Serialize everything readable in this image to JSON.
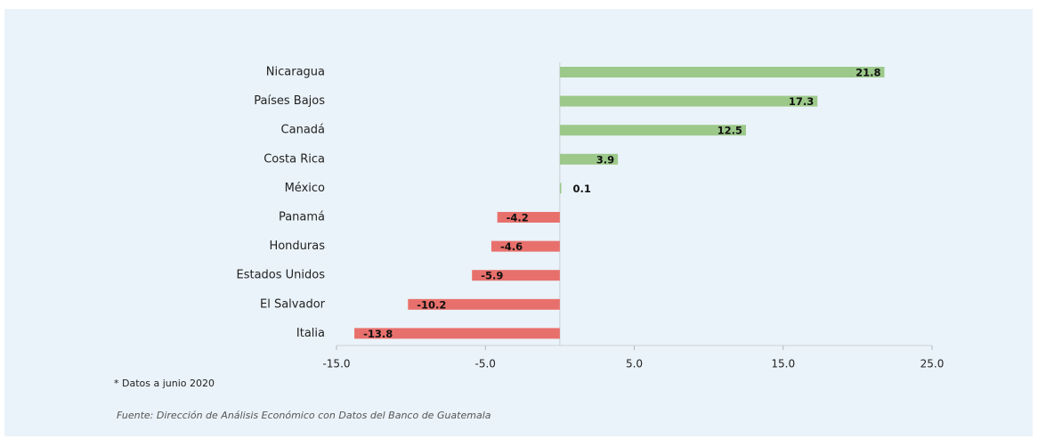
{
  "chart_data": {
    "type": "barh",
    "categories": [
      "Nicaragua",
      "Países Bajos",
      "Canadá",
      "Costa Rica",
      "México",
      "Panamá",
      "Honduras",
      "Estados Unidos",
      "El Salvador",
      "Italia"
    ],
    "values": [
      21.8,
      17.3,
      12.5,
      3.9,
      0.1,
      -4.2,
      -4.6,
      -5.9,
      -10.2,
      -13.8
    ],
    "positive_color": "#9cc98a",
    "negative_color": "#e8706c",
    "xlim": [
      -15,
      25
    ],
    "xticks": [
      {
        "value": -15,
        "label": "-15.0"
      },
      {
        "value": -5,
        "label": "-5.0"
      },
      {
        "value": 5,
        "label": "5.0"
      },
      {
        "value": 15,
        "label": "15.0"
      },
      {
        "value": 25,
        "label": "25.0"
      }
    ],
    "note": "* Datos a junio 2020",
    "source": "Fuente: Dirección de Análisis Económico con Datos del Banco de Guatemala"
  }
}
